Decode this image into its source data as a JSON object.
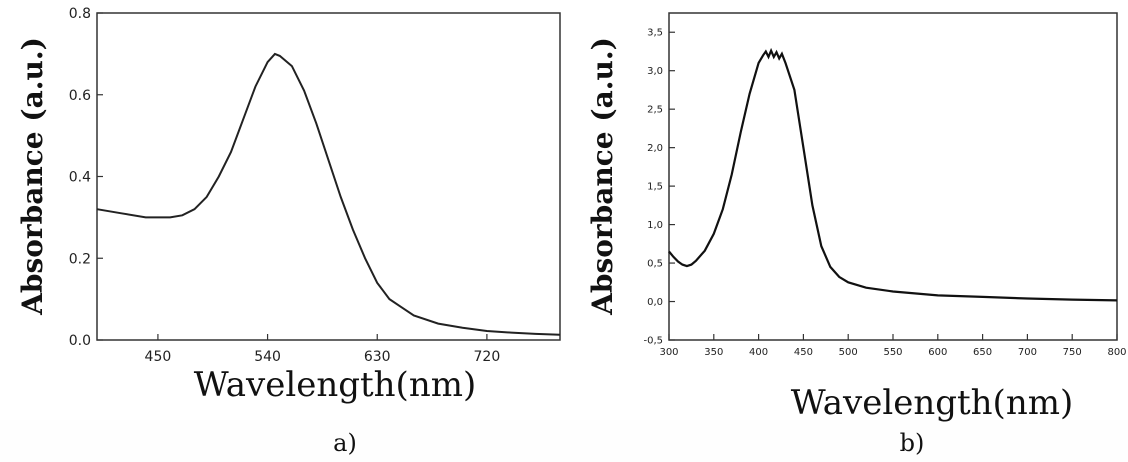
{
  "chart_data": [
    {
      "type": "line",
      "panel_label": "a)",
      "xlabel": "Wavelength(nm)",
      "ylabel": "Absorbance (a.u.)",
      "xlim": [
        400,
        780
      ],
      "ylim": [
        0,
        0.8
      ],
      "xticks": [
        450,
        540,
        630,
        720
      ],
      "xtick_labels": [
        "450",
        "540",
        "630",
        "720"
      ],
      "yticks": [
        0.0,
        0.2,
        0.4,
        0.6,
        0.8
      ],
      "ytick_labels": [
        "0.0",
        "0.2",
        "0.4",
        "0.6",
        "0.8"
      ],
      "grid": false,
      "series": [
        {
          "x": [
            400,
            420,
            440,
            460,
            470,
            480,
            490,
            500,
            510,
            520,
            530,
            540,
            546,
            550,
            560,
            570,
            580,
            590,
            600,
            610,
            620,
            630,
            640,
            650,
            660,
            680,
            700,
            720,
            740,
            760,
            780
          ],
          "y": [
            0.32,
            0.31,
            0.3,
            0.3,
            0.305,
            0.32,
            0.35,
            0.4,
            0.46,
            0.54,
            0.62,
            0.68,
            0.7,
            0.695,
            0.67,
            0.61,
            0.53,
            0.44,
            0.35,
            0.27,
            0.2,
            0.14,
            0.1,
            0.08,
            0.06,
            0.04,
            0.03,
            0.022,
            0.018,
            0.015,
            0.013
          ]
        }
      ]
    },
    {
      "type": "line",
      "panel_label": "b)",
      "xlabel": "Wavelength(nm)",
      "ylabel": "Absorbance (a.u.)",
      "xlim": [
        300,
        800
      ],
      "ylim": [
        -0.5,
        3.75
      ],
      "xticks": [
        300,
        350,
        400,
        450,
        500,
        550,
        600,
        650,
        700,
        750,
        800
      ],
      "xtick_labels": [
        "300",
        "350",
        "400",
        "450",
        "500",
        "550",
        "600",
        "650",
        "700",
        "750",
        "800"
      ],
      "yticks": [
        -0.5,
        0.0,
        0.5,
        1.0,
        1.5,
        2.0,
        2.5,
        3.0,
        3.5
      ],
      "ytick_labels": [
        "-0,5",
        "0,0",
        "0,5",
        "1,0",
        "1,5",
        "2,0",
        "2,5",
        "3,0",
        "3,5"
      ],
      "grid": false,
      "series": [
        {
          "x": [
            300,
            305,
            310,
            315,
            320,
            325,
            330,
            340,
            350,
            360,
            370,
            380,
            390,
            400,
            405,
            408,
            411,
            414,
            417,
            420,
            423,
            426,
            430,
            440,
            450,
            460,
            470,
            480,
            490,
            500,
            520,
            550,
            600,
            650,
            700,
            750,
            800
          ],
          "y": [
            0.65,
            0.58,
            0.52,
            0.48,
            0.46,
            0.48,
            0.53,
            0.66,
            0.88,
            1.2,
            1.65,
            2.2,
            2.7,
            3.1,
            3.2,
            3.25,
            3.18,
            3.26,
            3.18,
            3.24,
            3.16,
            3.22,
            3.1,
            2.75,
            2.0,
            1.25,
            0.72,
            0.45,
            0.32,
            0.25,
            0.18,
            0.13,
            0.08,
            0.06,
            0.04,
            0.025,
            0.015
          ]
        }
      ]
    }
  ]
}
